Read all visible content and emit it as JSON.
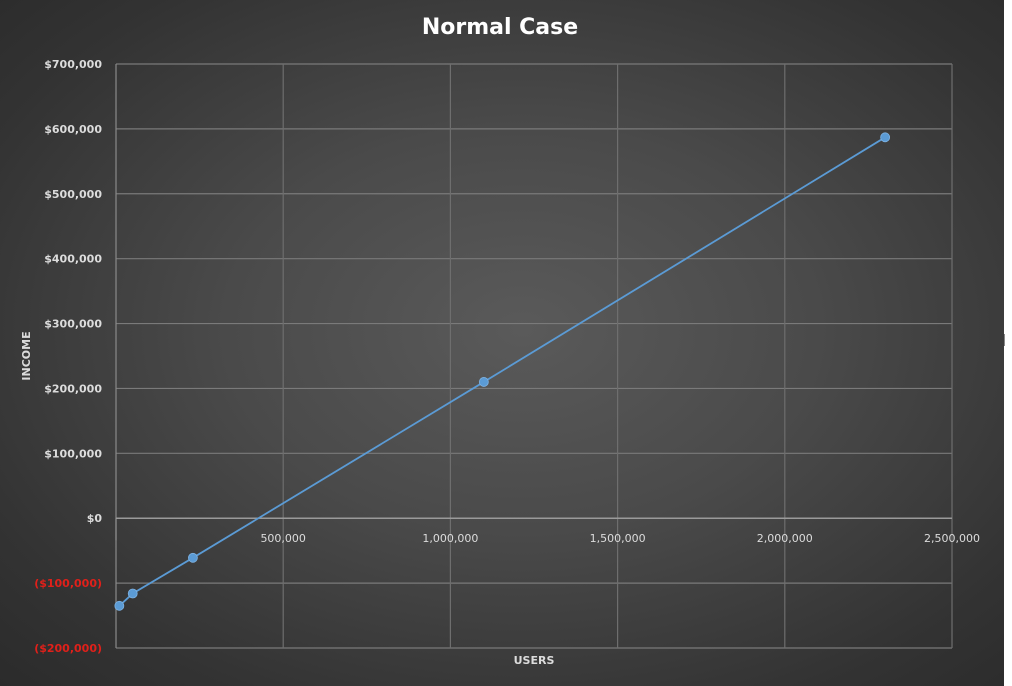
{
  "chart_data": {
    "type": "line",
    "title": "Normal Case",
    "xlabel": "USERS",
    "ylabel": "INCOME",
    "xlim": [
      0,
      2500000
    ],
    "ylim": [
      -200000,
      700000
    ],
    "x_ticks": [
      0,
      500000,
      1000000,
      1500000,
      2000000,
      2500000
    ],
    "x_tick_labels": [
      "",
      "500,000",
      "1,000,000",
      "1,500,000",
      "2,000,000",
      "2,500,000"
    ],
    "y_ticks": [
      700000,
      600000,
      500000,
      400000,
      300000,
      200000,
      100000,
      0,
      -100000,
      -200000
    ],
    "y_tick_labels": [
      "$700,000",
      "$600,000",
      "$500,000",
      "$400,000",
      "$300,000",
      "$200,000",
      "$100,000",
      "$0",
      "($100,000)",
      "($200,000)"
    ],
    "negative_tick_color": "#e0201a",
    "grid": true,
    "legend": "none",
    "series": [
      {
        "color": "#5b9bd5",
        "x": [
          10000,
          50000,
          230000,
          1100000,
          2300000
        ],
        "y": [
          -135000,
          -116000,
          -61000,
          210000,
          587000
        ]
      }
    ]
  }
}
